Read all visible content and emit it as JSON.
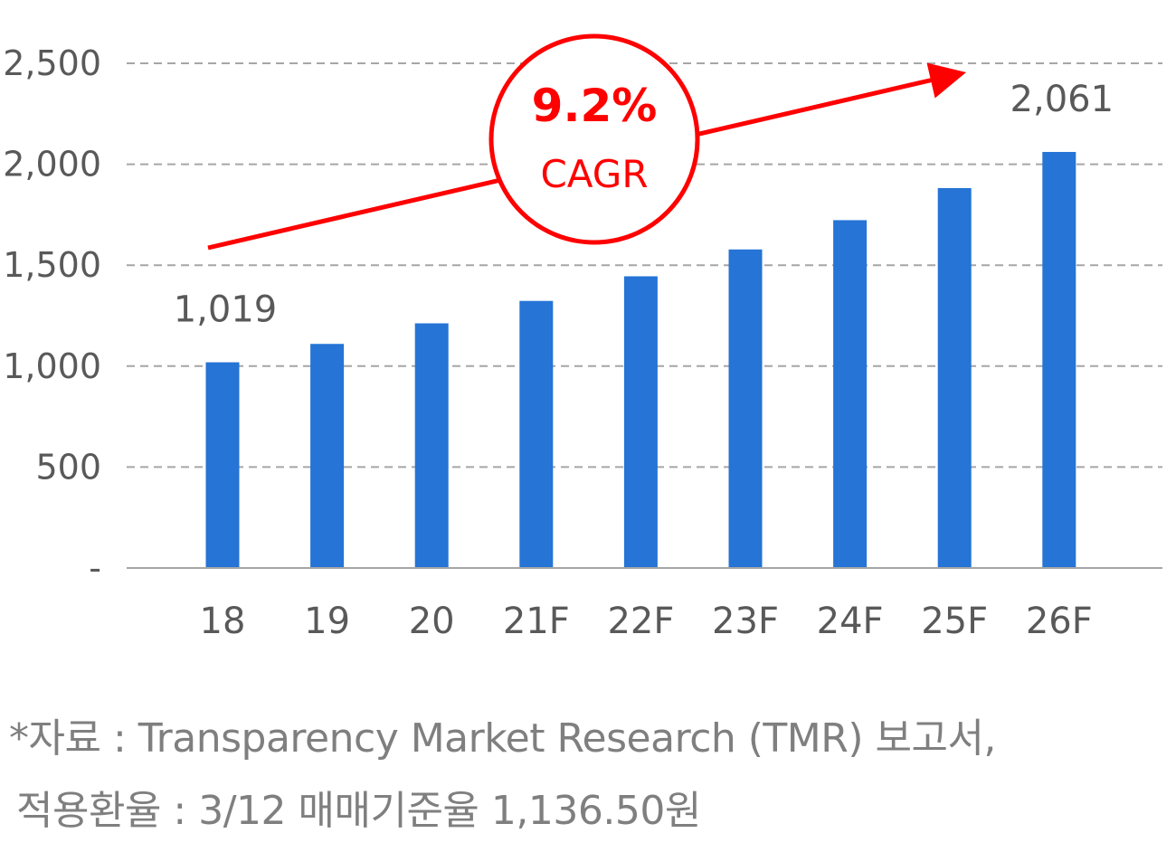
{
  "chart_data": {
    "type": "bar",
    "categories": [
      "18",
      "19",
      "20",
      "21F",
      "22F",
      "23F",
      "24F",
      "25F",
      "26F"
    ],
    "values": [
      1019,
      1110,
      1212,
      1323,
      1445,
      1578,
      1723,
      1882,
      2061
    ],
    "ylim": [
      0,
      2500
    ],
    "yticks": [
      0,
      500,
      1000,
      1500,
      2000,
      2500
    ],
    "ytick_labels": [
      "-",
      "500",
      "1,000",
      "1,500",
      "2,000",
      "2,500"
    ],
    "data_labels": [
      {
        "index": 0,
        "text": "1,019"
      },
      {
        "index": 8,
        "text": "2,061"
      }
    ],
    "grid": true,
    "annotation": {
      "rate": "9.2%",
      "label": "CAGR"
    },
    "colors": {
      "bar": "#2574d6",
      "annotation": "#ff0000",
      "grid": "#a6a6a6",
      "axis": "#a6a6a6"
    }
  },
  "notes": {
    "line1": "*자료 : Transparency Market Research (TMR)  보고서,",
    "line2": "적용환율 : 3/12 매매기준율 1,136.50원"
  }
}
